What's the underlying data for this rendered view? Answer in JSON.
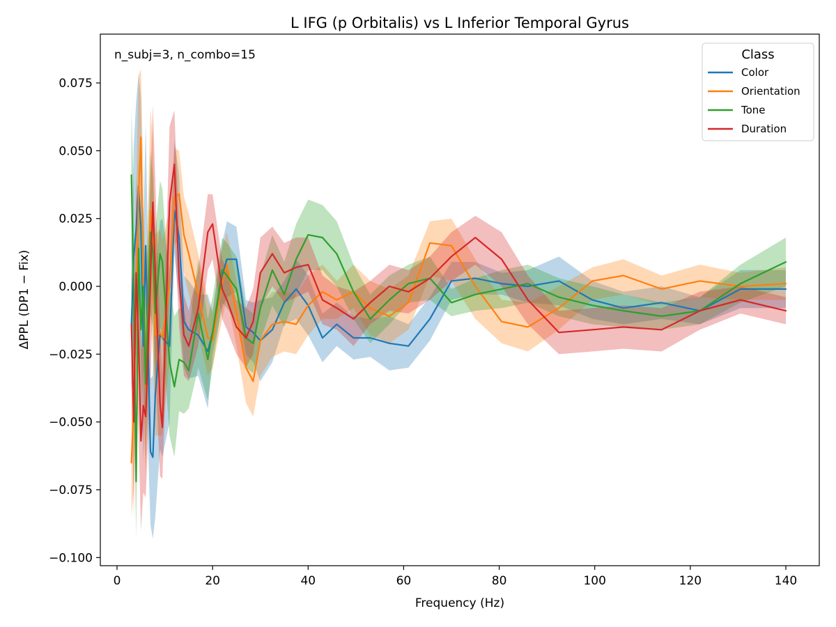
{
  "chart_data": {
    "type": "line",
    "title": "L IFG (p Orbitalis) vs L Inferior Temporal Gyrus",
    "xlabel": "Frequency (Hz)",
    "ylabel": "ΔPPL (DP1 − Fix)",
    "annotation": "n_subj=3, n_combo=15",
    "xlim": [
      -3.5,
      147
    ],
    "ylim": [
      -0.103,
      0.093
    ],
    "xticks": [
      0,
      20,
      40,
      60,
      80,
      100,
      120,
      140
    ],
    "xtick_labels": [
      "0",
      "20",
      "40",
      "60",
      "80",
      "100",
      "120",
      "140"
    ],
    "yticks": [
      -0.1,
      -0.075,
      -0.05,
      -0.025,
      0.0,
      0.025,
      0.05,
      0.075
    ],
    "ytick_labels": [
      "−0.100",
      "−0.075",
      "−0.050",
      "−0.025",
      "0.000",
      "0.025",
      "0.050",
      "0.075"
    ],
    "grid": false,
    "legend": {
      "title": "Class",
      "position": "top-right"
    },
    "x": [
      3,
      3.5,
      4,
      4.5,
      5,
      5.5,
      6,
      7,
      7.5,
      8,
      9,
      9.5,
      11,
      12,
      13,
      14,
      15,
      17,
      19,
      20,
      22,
      23,
      25,
      27,
      28.5,
      30,
      32.5,
      35,
      37.5,
      40,
      43,
      46,
      49.5,
      53,
      57,
      61,
      65.5,
      70,
      75,
      80.5,
      86,
      92.5,
      99.5,
      106,
      114,
      122,
      130.5,
      140
    ],
    "series": [
      {
        "name": "Color",
        "color": "#1f77b4",
        "values": [
          -0.014,
          0.011,
          0.021,
          0.037,
          0.021,
          -0.022,
          0.015,
          -0.061,
          -0.063,
          -0.04,
          -0.018,
          -0.019,
          -0.022,
          0.028,
          0.018,
          -0.013,
          -0.016,
          -0.018,
          -0.024,
          -0.017,
          0.004,
          0.01,
          0.01,
          -0.015,
          -0.017,
          -0.02,
          -0.016,
          -0.006,
          -0.001,
          -0.007,
          -0.019,
          -0.014,
          -0.019,
          -0.019,
          -0.021,
          -0.022,
          -0.012,
          0.002,
          0.003,
          0.001,
          0.0,
          0.002,
          -0.005,
          -0.008,
          -0.006,
          -0.009,
          -0.001,
          -0.001
        ],
        "lower": [
          -0.038,
          -0.03,
          -0.026,
          -0.004,
          -0.028,
          -0.065,
          -0.03,
          -0.088,
          -0.093,
          -0.085,
          -0.06,
          -0.063,
          -0.05,
          0.012,
          -0.005,
          -0.03,
          -0.034,
          -0.033,
          -0.045,
          -0.025,
          -0.008,
          -0.004,
          -0.002,
          -0.025,
          -0.028,
          -0.035,
          -0.028,
          -0.014,
          -0.012,
          -0.018,
          -0.028,
          -0.022,
          -0.027,
          -0.026,
          -0.031,
          -0.03,
          -0.02,
          -0.005,
          -0.003,
          -0.003,
          -0.006,
          -0.007,
          -0.012,
          -0.014,
          -0.012,
          -0.014,
          -0.008,
          -0.008
        ],
        "upper": [
          0.01,
          0.052,
          0.068,
          0.078,
          0.07,
          0.021,
          0.06,
          -0.034,
          -0.033,
          0.005,
          0.024,
          0.025,
          0.006,
          0.054,
          0.041,
          0.004,
          0.002,
          -0.003,
          -0.003,
          -0.009,
          0.016,
          0.024,
          0.022,
          -0.005,
          -0.006,
          -0.005,
          -0.004,
          0.002,
          0.01,
          0.004,
          -0.01,
          -0.006,
          -0.011,
          -0.012,
          -0.011,
          -0.014,
          -0.004,
          0.009,
          0.009,
          0.005,
          0.006,
          0.011,
          0.002,
          -0.002,
          0.0,
          -0.004,
          0.006,
          0.006
        ]
      },
      {
        "name": "Orientation",
        "color": "#ff7f0e",
        "values": [
          -0.065,
          -0.045,
          -0.006,
          0.034,
          0.055,
          -0.002,
          -0.037,
          0.028,
          0.014,
          -0.018,
          -0.017,
          -0.019,
          0.0,
          0.033,
          0.034,
          0.019,
          0.012,
          -0.003,
          -0.019,
          -0.02,
          0.001,
          0.008,
          -0.01,
          -0.03,
          -0.035,
          -0.02,
          -0.014,
          -0.013,
          -0.014,
          -0.007,
          -0.002,
          -0.005,
          -0.002,
          -0.008,
          -0.011,
          -0.006,
          0.016,
          0.015,
          -0.0,
          -0.013,
          -0.015,
          -0.008,
          0.002,
          0.004,
          -0.001,
          0.002,
          0.0,
          0.001
        ],
        "lower": [
          -0.085,
          -0.075,
          -0.045,
          -0.01,
          0.03,
          -0.045,
          -0.07,
          -0.01,
          -0.025,
          -0.055,
          -0.055,
          -0.055,
          -0.028,
          0.015,
          0.018,
          0.005,
          -0.003,
          -0.018,
          -0.033,
          -0.03,
          -0.012,
          -0.004,
          -0.022,
          -0.043,
          -0.048,
          -0.033,
          -0.026,
          -0.024,
          -0.025,
          -0.018,
          -0.012,
          -0.012,
          -0.008,
          -0.018,
          -0.021,
          -0.016,
          0.004,
          0.002,
          -0.012,
          -0.021,
          -0.024,
          -0.016,
          -0.005,
          -0.003,
          -0.007,
          -0.004,
          -0.005,
          -0.005
        ],
        "upper": [
          -0.045,
          -0.015,
          0.033,
          0.078,
          0.08,
          0.041,
          -0.004,
          0.066,
          0.053,
          0.019,
          0.021,
          0.017,
          0.028,
          0.051,
          0.05,
          0.033,
          0.027,
          0.012,
          -0.005,
          -0.01,
          0.014,
          0.02,
          0.002,
          -0.017,
          -0.022,
          -0.007,
          -0.002,
          -0.002,
          -0.003,
          0.004,
          0.008,
          0.002,
          0.008,
          0.002,
          -0.001,
          0.004,
          0.024,
          0.025,
          0.01,
          -0.005,
          -0.006,
          0.0,
          0.007,
          0.01,
          0.004,
          0.008,
          0.005,
          0.007
        ]
      },
      {
        "name": "Tone",
        "color": "#2ca02c",
        "values": [
          0.041,
          -0.002,
          -0.072,
          0.014,
          -0.016,
          0.0,
          -0.036,
          0.02,
          0.013,
          -0.01,
          0.012,
          0.009,
          -0.028,
          -0.037,
          -0.027,
          -0.028,
          -0.031,
          -0.01,
          -0.027,
          -0.017,
          0.006,
          0.004,
          -0.001,
          -0.019,
          -0.021,
          -0.008,
          0.006,
          -0.003,
          0.01,
          0.019,
          0.018,
          0.012,
          -0.002,
          -0.012,
          -0.005,
          0.001,
          0.003,
          -0.006,
          -0.003,
          -0.001,
          0.001,
          -0.004,
          -0.007,
          -0.009,
          -0.011,
          -0.009,
          0.001,
          0.009
        ],
        "lower": [
          0.015,
          -0.04,
          -0.093,
          -0.02,
          -0.05,
          -0.03,
          -0.065,
          -0.01,
          -0.015,
          -0.04,
          -0.015,
          -0.018,
          -0.055,
          -0.063,
          -0.046,
          -0.047,
          -0.045,
          -0.03,
          -0.042,
          -0.03,
          -0.006,
          -0.008,
          -0.013,
          -0.03,
          -0.032,
          -0.02,
          -0.007,
          -0.015,
          -0.003,
          0.006,
          0.006,
          0.0,
          -0.012,
          -0.021,
          -0.014,
          -0.006,
          -0.005,
          -0.011,
          -0.009,
          -0.008,
          -0.006,
          -0.011,
          -0.014,
          -0.015,
          -0.016,
          -0.014,
          -0.006,
          0.0
        ],
        "upper": [
          0.066,
          0.036,
          -0.051,
          0.048,
          0.018,
          0.03,
          -0.007,
          0.05,
          0.041,
          0.02,
          0.039,
          0.036,
          -0.001,
          -0.011,
          -0.008,
          -0.009,
          -0.017,
          0.01,
          -0.012,
          -0.004,
          0.018,
          0.016,
          0.011,
          -0.008,
          -0.01,
          0.004,
          0.019,
          0.009,
          0.023,
          0.032,
          0.03,
          0.024,
          0.008,
          -0.003,
          0.004,
          0.008,
          0.011,
          -0.001,
          0.003,
          0.006,
          0.008,
          0.003,
          0.0,
          -0.003,
          -0.006,
          -0.004,
          0.008,
          0.018
        ]
      },
      {
        "name": "Duration",
        "color": "#d62728",
        "values": [
          -0.014,
          -0.05,
          0.005,
          -0.02,
          -0.057,
          -0.044,
          -0.048,
          0.002,
          0.031,
          0.005,
          -0.043,
          -0.052,
          0.031,
          0.045,
          0.003,
          -0.018,
          -0.022,
          -0.008,
          0.02,
          0.023,
          -0.001,
          -0.005,
          -0.015,
          -0.019,
          -0.013,
          0.005,
          0.012,
          0.005,
          0.007,
          0.008,
          -0.005,
          -0.008,
          -0.012,
          -0.006,
          0.0,
          -0.002,
          0.003,
          0.011,
          0.018,
          0.01,
          -0.005,
          -0.017,
          -0.016,
          -0.015,
          -0.016,
          -0.009,
          -0.005,
          -0.009
        ],
        "lower": [
          -0.035,
          -0.085,
          -0.03,
          -0.055,
          -0.09,
          -0.076,
          -0.078,
          -0.035,
          -0.005,
          -0.03,
          -0.07,
          -0.071,
          0.003,
          0.02,
          -0.015,
          -0.033,
          -0.035,
          -0.022,
          0.006,
          0.01,
          -0.012,
          -0.016,
          -0.025,
          -0.03,
          -0.025,
          -0.008,
          0.0,
          -0.006,
          -0.004,
          -0.002,
          -0.014,
          -0.016,
          -0.022,
          -0.014,
          -0.009,
          -0.01,
          -0.005,
          0.002,
          0.008,
          0.0,
          -0.014,
          -0.025,
          -0.024,
          -0.023,
          -0.024,
          -0.016,
          -0.01,
          -0.014
        ],
        "upper": [
          0.007,
          -0.015,
          0.04,
          0.015,
          -0.024,
          -0.012,
          -0.018,
          0.039,
          0.067,
          0.04,
          -0.016,
          -0.033,
          0.059,
          0.065,
          0.021,
          -0.003,
          -0.009,
          0.006,
          0.034,
          0.034,
          0.01,
          0.006,
          -0.005,
          -0.008,
          -0.001,
          0.018,
          0.022,
          0.016,
          0.018,
          0.018,
          0.004,
          0.0,
          -0.002,
          0.002,
          0.008,
          0.006,
          0.011,
          0.02,
          0.026,
          0.02,
          0.004,
          -0.009,
          -0.008,
          -0.007,
          -0.008,
          -0.002,
          0.0,
          -0.004
        ]
      }
    ]
  }
}
